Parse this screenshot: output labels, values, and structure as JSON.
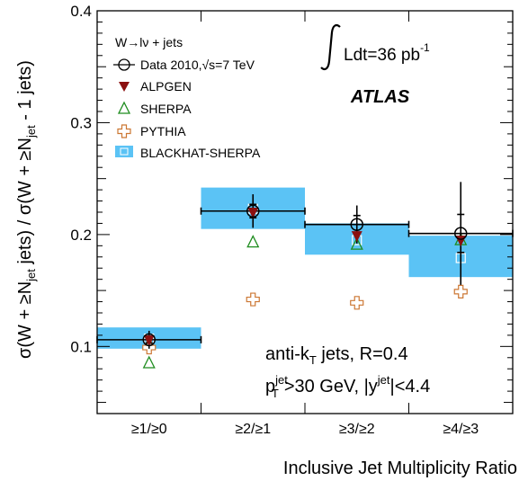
{
  "chart_data": {
    "type": "scatter",
    "categories": [
      "≥1/≥0",
      "≥2/≥1",
      "≥3/≥2",
      "≥4/≥3"
    ],
    "ylim": [
      0.04,
      0.4
    ],
    "yticks": [
      0.1,
      0.2,
      0.3,
      0.4
    ],
    "ylabel": "σ(W + ≥N_jet jets) / σ(W + ≥N_jet - 1 jets)",
    "xlabel": "Inclusive Jet Multiplicity Ratio",
    "legend": {
      "title": "W→lν + jets",
      "placement": "top-left",
      "entries": [
        "Data 2010,√s=7 TeV",
        "ALPGEN",
        "SHERPA",
        "PYTHIA",
        "BLACKHAT-SHERPA"
      ]
    },
    "annotations": {
      "lumi": "∫Ldt=36 pb⁻¹",
      "experiment": "ATLAS",
      "jets": "anti-kT jets, R=0.4",
      "cuts": "pT^jet>30 GeV, |y^jet|<4.4"
    },
    "series": [
      {
        "name": "Data 2010,√s=7 TeV",
        "values": [
          0.106,
          0.221,
          0.209,
          0.201
        ],
        "err_stat": [
          0.003,
          0.006,
          0.008,
          0.017
        ],
        "err_total": [
          0.008,
          0.015,
          0.017,
          0.046
        ]
      },
      {
        "name": "ALPGEN",
        "values": [
          0.106,
          0.22,
          0.199,
          0.195
        ]
      },
      {
        "name": "SHERPA",
        "values": [
          0.085,
          0.193,
          0.191,
          0.195
        ]
      },
      {
        "name": "PYTHIA",
        "values": [
          0.099,
          0.142,
          0.139,
          0.149
        ]
      },
      {
        "name": "BLACKHAT-SHERPA",
        "values": [
          0.107,
          0.223,
          0.195,
          0.179
        ],
        "band_low": [
          0.098,
          0.205,
          0.182,
          0.162
        ],
        "band_high": [
          0.117,
          0.242,
          0.21,
          0.199
        ]
      }
    ],
    "colors": {
      "data": "#000000",
      "alpgen": "#8b1010",
      "sherpa": "#1e8c1e",
      "pythia": "#cc7733",
      "band": "#5bc3f5"
    }
  }
}
